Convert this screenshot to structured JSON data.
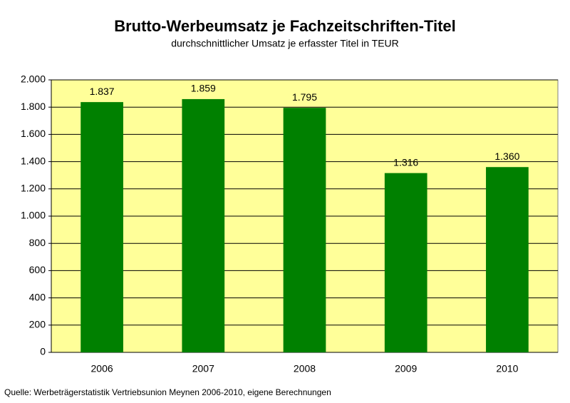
{
  "chart_data": {
    "type": "bar",
    "title": "Brutto-Werbeumsatz je Fachzeitschriften-Titel",
    "subtitle": "durchschnittlicher Umsatz je erfasster Titel in TEUR",
    "source": "Quelle: Werbeträgerstatistik Vertriebsunion Meynen 2006-2010, eigene Berechnungen",
    "categories": [
      "2006",
      "2007",
      "2008",
      "2009",
      "2010"
    ],
    "values": [
      1837,
      1859,
      1795,
      1316,
      1360
    ],
    "value_labels": [
      "1.837",
      "1.859",
      "1.795",
      "1.316",
      "1.360"
    ],
    "color": "#008000",
    "background": "#ffff99",
    "ylim": [
      0,
      2000
    ],
    "yticks": [
      0,
      200,
      400,
      600,
      800,
      {
        "value": 1000,
        "label": "1.000"
      },
      {
        "value": 1200,
        "label": "1.200"
      },
      {
        "value": 1400,
        "label": "1.400"
      },
      {
        "value": 1600,
        "label": "1.600"
      },
      {
        "value": 1800,
        "label": "1.800"
      },
      {
        "value": 2000,
        "label": "2.000"
      }
    ],
    "grid": true
  }
}
